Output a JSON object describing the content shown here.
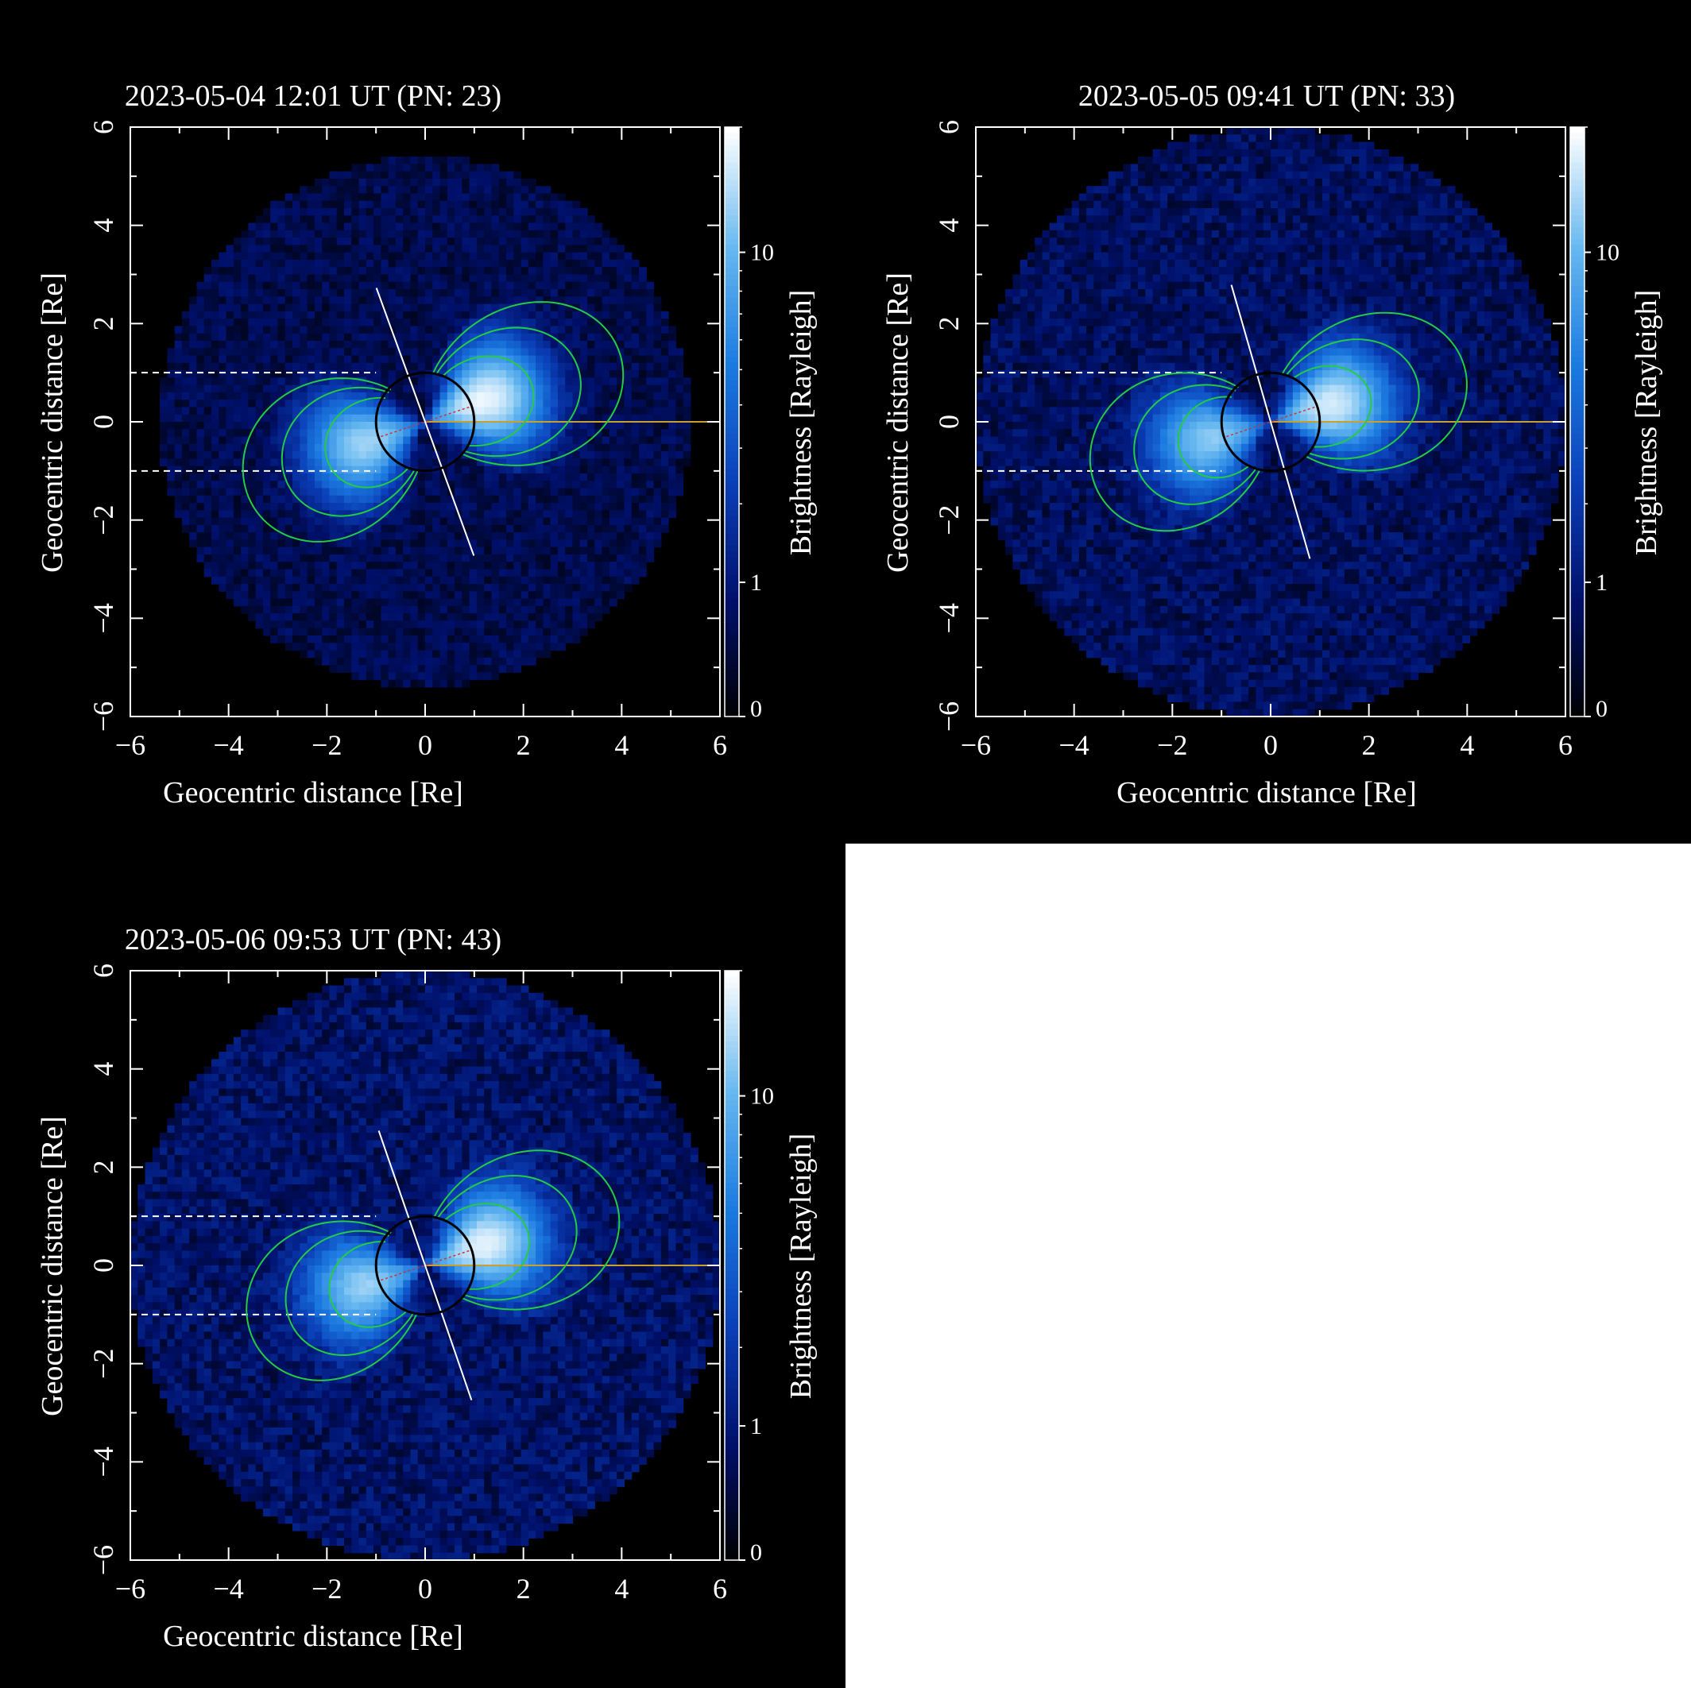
{
  "colors": {
    "background": "#000000",
    "axes": "#ffffff",
    "field_lines": "#22cc44",
    "earth_outline": "#000000",
    "sun_direction": "#c8a030",
    "dipole_axis": "#ffffff",
    "earth_radius_marks": "#ffffff",
    "rotation_axis": "#cc3333",
    "colormap": [
      "#000000",
      "#00106a",
      "#0a3fb8",
      "#1b7ae0",
      "#66b8f0",
      "#ffffff"
    ]
  },
  "chart_data": [
    {
      "type": "heatmap",
      "title": "2023-05-04 12:01 UT (PN: 23)",
      "xlabel": "Geocentric distance [Re]",
      "ylabel": "Geocentric distance [Re]",
      "xlim": [
        -6,
        6
      ],
      "ylim": [
        -6,
        6
      ],
      "xticks": [
        "−6",
        "−4",
        "−2",
        "0",
        "2",
        "4",
        "6"
      ],
      "yticks": [
        "−6",
        "−4",
        "−2",
        "0",
        "2",
        "4",
        "6"
      ],
      "colorbar": {
        "label": "Brightness [Rayleigh]",
        "ticks": [
          "0",
          "1",
          "10"
        ],
        "max": 20
      },
      "fov_radius_re": 5.4,
      "peak_rayleigh": 18,
      "background_rayleigh": 0.55,
      "dipole_tilt_deg": -20,
      "field_line_L": [
        2.3,
        3.3,
        4.2
      ],
      "sun_direction": "+x"
    },
    {
      "type": "heatmap",
      "title": "2023-05-05 09:41 UT (PN: 33)",
      "xlabel": "Geocentric distance [Re]",
      "ylabel": "Geocentric distance [Re]",
      "xlim": [
        -6,
        6
      ],
      "ylim": [
        -6,
        6
      ],
      "xticks": [
        "−6",
        "−4",
        "−2",
        "0",
        "2",
        "4",
        "6"
      ],
      "yticks": [
        "−6",
        "−4",
        "−2",
        "0",
        "2",
        "4",
        "6"
      ],
      "colorbar": {
        "label": "Brightness [Rayleigh]",
        "ticks": [
          "0",
          "1",
          "10"
        ],
        "max": 20
      },
      "fov_radius_re": 6.0,
      "peak_rayleigh": 16,
      "background_rayleigh": 0.7,
      "dipole_tilt_deg": -16,
      "field_line_L": [
        2.1,
        3.1,
        4.1
      ],
      "sun_direction": "+x"
    },
    {
      "type": "heatmap",
      "title": "2023-05-06 09:53 UT (PN: 43)",
      "xlabel": "Geocentric distance [Re]",
      "ylabel": "Geocentric distance [Re]",
      "xlim": [
        -6,
        6
      ],
      "ylim": [
        -6,
        6
      ],
      "xticks": [
        "−6",
        "−4",
        "−2",
        "0",
        "2",
        "4",
        "6"
      ],
      "yticks": [
        "−6",
        "−4",
        "−2",
        "0",
        "2",
        "4",
        "6"
      ],
      "colorbar": {
        "label": "Brightness [Rayleigh]",
        "ticks": [
          "0",
          "1",
          "10"
        ],
        "max": 20
      },
      "fov_radius_re": 6.0,
      "peak_rayleigh": 17,
      "background_rayleigh": 0.8,
      "dipole_tilt_deg": -19,
      "field_line_L": [
        2.2,
        3.2,
        4.1
      ],
      "sun_direction": "+x"
    }
  ]
}
